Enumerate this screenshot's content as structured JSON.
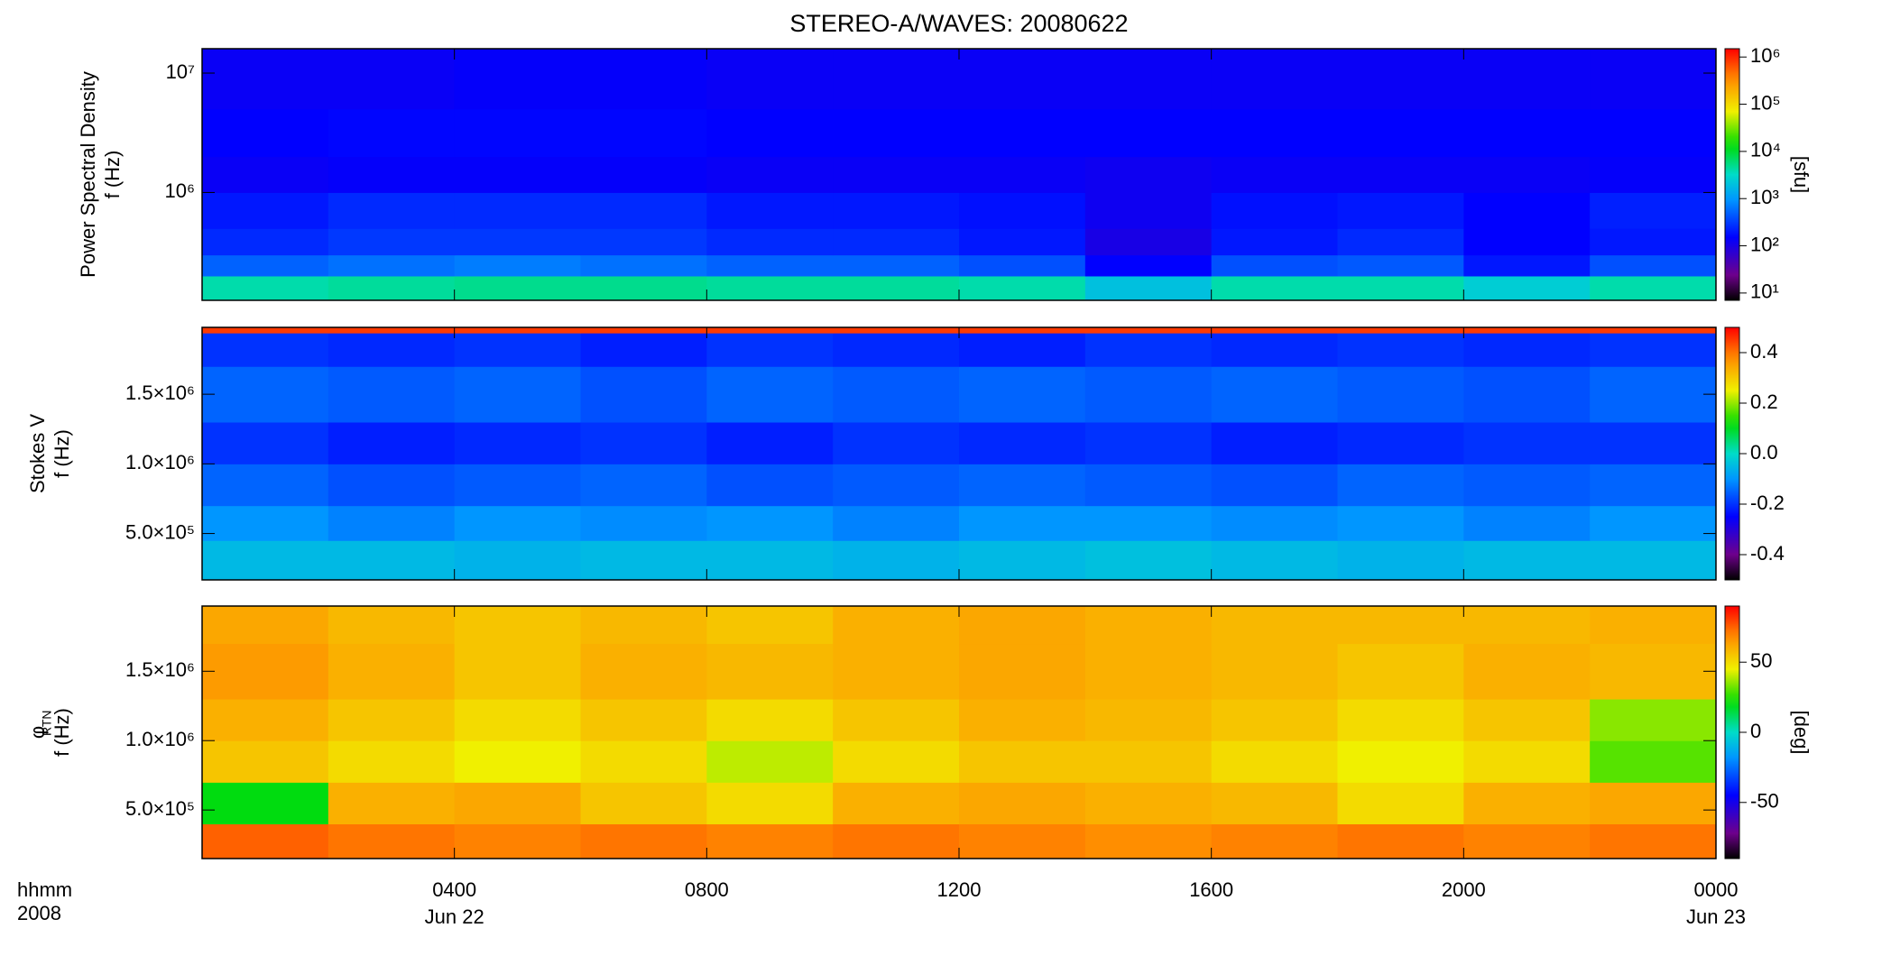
{
  "title": "STEREO-A/WAVES: 20080622",
  "x_axis": {
    "xlim": [
      0,
      24
    ],
    "xticks": [
      {
        "value": 4,
        "label": "0400"
      },
      {
        "value": 8,
        "label": "0800"
      },
      {
        "value": 12,
        "label": "1200"
      },
      {
        "value": 16,
        "label": "1600"
      },
      {
        "value": 20,
        "label": "2000"
      },
      {
        "value": 24,
        "label": "0000"
      }
    ],
    "date_labels": [
      {
        "value": 4,
        "label": "Jun 22"
      },
      {
        "value": 24,
        "label": "Jun 23"
      }
    ],
    "unit_labels": [
      "hhmm",
      "2008"
    ]
  },
  "chart_data": [
    {
      "type": "heatmap",
      "ylabel": [
        "Power Spectral Density",
        "f (Hz)"
      ],
      "yscale": "log",
      "ylim": [
        125000,
        16000000
      ],
      "yticks": [
        {
          "value": 1000000,
          "label": "10⁶"
        },
        {
          "value": 10000000,
          "label": "10⁷"
        }
      ],
      "x_edges": [
        0,
        2,
        4,
        6,
        8,
        10,
        12,
        14,
        16,
        18,
        20,
        22,
        24
      ],
      "y_edges": [
        125000,
        200000,
        300000,
        500000,
        1000000,
        2000000,
        5000000,
        16000000
      ],
      "z": [
        [
          4000,
          4500,
          5000,
          5000,
          4500,
          4500,
          4000,
          2000,
          4000,
          4000,
          2500,
          4000
        ],
        [
          500,
          600,
          700,
          600,
          500,
          500,
          400,
          150,
          400,
          450,
          200,
          400
        ],
        [
          250,
          300,
          300,
          300,
          250,
          250,
          200,
          100,
          200,
          250,
          150,
          200
        ],
        [
          200,
          250,
          250,
          250,
          200,
          200,
          180,
          120,
          180,
          200,
          150,
          220
        ],
        [
          130,
          140,
          140,
          140,
          130,
          130,
          130,
          120,
          130,
          130,
          130,
          140
        ],
        [
          150,
          160,
          160,
          160,
          150,
          150,
          150,
          150,
          150,
          150,
          150,
          150
        ],
        [
          130,
          130,
          140,
          140,
          130,
          130,
          130,
          130,
          130,
          130,
          130,
          130
        ]
      ],
      "colormap": "rainbow",
      "color_scale": "log",
      "zlim": [
        7,
        1500000
      ],
      "zticks": [
        {
          "value": 10,
          "label": "10¹"
        },
        {
          "value": 100,
          "label": "10²"
        },
        {
          "value": 1000,
          "label": "10³"
        },
        {
          "value": 10000,
          "label": "10⁴"
        },
        {
          "value": 100000,
          "label": "10⁵"
        },
        {
          "value": 1000000,
          "label": "10⁶"
        }
      ],
      "colorbar_label": "[sfu]"
    },
    {
      "type": "heatmap",
      "ylabel": [
        "Stokes V",
        "f (Hz)"
      ],
      "yscale": "linear",
      "ylim": [
        167000,
        1980000
      ],
      "yticks": [
        {
          "value": 500000,
          "label": "5.0×10⁵"
        },
        {
          "value": 1000000,
          "label": "1.0×10⁶"
        },
        {
          "value": 1500000,
          "label": "1.5×10⁶"
        }
      ],
      "x_edges": [
        0,
        2,
        4,
        6,
        8,
        10,
        12,
        14,
        16,
        18,
        20,
        22,
        24
      ],
      "y_edges": [
        167000,
        450000,
        700000,
        1000000,
        1300000,
        1700000,
        1940000,
        1980000
      ],
      "z": [
        [
          -0.05,
          -0.05,
          -0.06,
          -0.05,
          -0.05,
          -0.06,
          -0.05,
          -0.04,
          -0.05,
          -0.06,
          -0.05,
          -0.05
        ],
        [
          -0.1,
          -0.12,
          -0.1,
          -0.11,
          -0.1,
          -0.12,
          -0.1,
          -0.1,
          -0.11,
          -0.1,
          -0.12,
          -0.1
        ],
        [
          -0.15,
          -0.17,
          -0.16,
          -0.15,
          -0.17,
          -0.16,
          -0.15,
          -0.16,
          -0.17,
          -0.15,
          -0.16,
          -0.15
        ],
        [
          -0.2,
          -0.22,
          -0.21,
          -0.2,
          -0.22,
          -0.2,
          -0.21,
          -0.2,
          -0.22,
          -0.21,
          -0.2,
          -0.2
        ],
        [
          -0.15,
          -0.16,
          -0.15,
          -0.17,
          -0.15,
          -0.16,
          -0.15,
          -0.16,
          -0.15,
          -0.16,
          -0.17,
          -0.15
        ],
        [
          -0.2,
          -0.21,
          -0.2,
          -0.22,
          -0.2,
          -0.21,
          -0.22,
          -0.2,
          -0.21,
          -0.2,
          -0.21,
          -0.2
        ],
        [
          0.45,
          0.45,
          0.45,
          0.45,
          0.45,
          0.45,
          0.45,
          0.45,
          0.45,
          0.45,
          0.45,
          0.45
        ]
      ],
      "colormap": "rainbow",
      "color_scale": "linear",
      "zlim": [
        -0.5,
        0.5
      ],
      "zticks": [
        -0.4,
        -0.2,
        {
          "value": 0,
          "label": "0.0"
        },
        0.2,
        0.4
      ]
    },
    {
      "type": "heatmap",
      "ylabel": [
        "φ",
        "f (Hz)"
      ],
      "ylabel_subscript": "RTN",
      "yscale": "linear",
      "ylim": [
        150000,
        1970000
      ],
      "yticks": [
        {
          "value": 500000,
          "label": "5.0×10⁵"
        },
        {
          "value": 1000000,
          "label": "1.0×10⁶"
        },
        {
          "value": 1500000,
          "label": "1.5×10⁶"
        }
      ],
      "x_edges": [
        0,
        2,
        4,
        6,
        8,
        10,
        12,
        14,
        16,
        18,
        20,
        22,
        24
      ],
      "y_edges": [
        150000,
        400000,
        700000,
        1000000,
        1300000,
        1700000,
        1970000
      ],
      "z": [
        [
          75,
          72,
          70,
          72,
          70,
          72,
          70,
          68,
          70,
          72,
          70,
          72
        ],
        [
          20,
          60,
          62,
          55,
          50,
          60,
          62,
          60,
          58,
          50,
          60,
          62
        ],
        [
          55,
          50,
          45,
          50,
          40,
          50,
          55,
          55,
          50,
          45,
          50,
          30
        ],
        [
          60,
          55,
          50,
          55,
          50,
          55,
          60,
          58,
          55,
          50,
          55,
          35
        ],
        [
          65,
          60,
          55,
          60,
          58,
          60,
          62,
          60,
          58,
          55,
          60,
          58
        ],
        [
          62,
          58,
          55,
          58,
          55,
          60,
          62,
          60,
          58,
          58,
          58,
          60
        ]
      ],
      "colormap": "rainbow",
      "color_scale": "linear",
      "zlim": [
        -90,
        90
      ],
      "zticks": [
        -50,
        0,
        50
      ],
      "colorbar_label": "[deg]"
    }
  ]
}
